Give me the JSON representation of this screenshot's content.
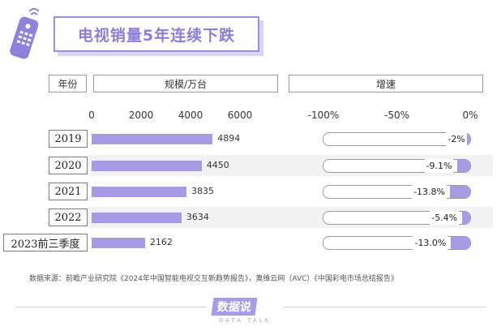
{
  "title": "电视销量5年连续下跌",
  "headers": {
    "year": "年份",
    "volume": "规模/万台",
    "growth": "增速"
  },
  "volume_ticks": [
    "0",
    "2000",
    "4000",
    "6000"
  ],
  "growth_ticks": [
    "-100%",
    "-50%",
    "0%"
  ],
  "source": "数据来源：前瞻产业研究院《2024年中国智能电视交互新趋势报告》，奥维云网（AVC）《中国彩电市场总结报告》",
  "logo": {
    "text": "数据说",
    "sub": "DATA TALK"
  },
  "colors": {
    "accent": "#a89be6",
    "title": "#8a7fd6"
  },
  "chart_data": [
    {
      "type": "bar",
      "categories": [
        "2019",
        "2020",
        "2021",
        "2022",
        "2023前三季度"
      ],
      "values": [
        4894,
        4450,
        3835,
        3634,
        2162
      ],
      "value_labels": [
        "4894",
        "4450",
        "3835",
        "3634",
        "2162"
      ],
      "title": "电视销量5年连续下跌",
      "xlabel": "规模/万台",
      "ylabel": "年份",
      "xlim": [
        0,
        6000
      ],
      "orientation": "horizontal"
    },
    {
      "type": "bar",
      "categories": [
        "2019",
        "2020",
        "2021",
        "2022",
        "2023前三季度"
      ],
      "values": [
        -2,
        -9.1,
        -13.8,
        -5.4,
        -13.0
      ],
      "value_labels": [
        "-2%",
        "-9.1%",
        "-13.8%",
        "-5.4%",
        "-13.0%"
      ],
      "xlabel": "增速",
      "xlim": [
        -100,
        0
      ],
      "unit": "%",
      "orientation": "horizontal"
    }
  ]
}
